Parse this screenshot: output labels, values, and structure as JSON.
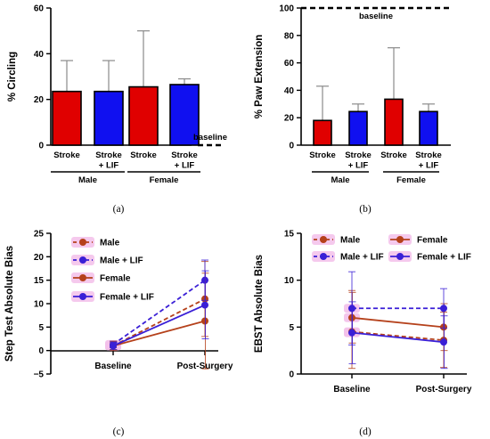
{
  "panels": {
    "a": "(a)",
    "b": "(b)",
    "c": "(c)",
    "d": "(d)"
  },
  "colors": {
    "stroke": "#e00000",
    "stroke_lif": "#1010f0",
    "male": "#b5411b",
    "male_lif": "#3a1fd6",
    "female": "#b5411b",
    "female_lif": "#3a1fd6",
    "band": "#f3c0ea"
  },
  "chart_data": [
    {
      "type": "bar",
      "ylabel": "% Circling",
      "ylim": [
        0,
        60
      ],
      "yticks": [
        "0",
        "20",
        "40",
        "60"
      ],
      "categories": [
        [
          "Stroke"
        ],
        [
          "Stroke",
          "+ LIF"
        ],
        [
          "Stroke"
        ],
        [
          "Stroke",
          "+ LIF"
        ]
      ],
      "groups": [
        "Male",
        "Female"
      ],
      "values": [
        23.5,
        23.5,
        25.5,
        26.5
      ],
      "errors": [
        37,
        37,
        50,
        29
      ],
      "bar_colors": [
        "#e00000",
        "#1010f0",
        "#e00000",
        "#1010f0"
      ],
      "baseline": {
        "label": "baseline",
        "value": 0
      }
    },
    {
      "type": "bar",
      "ylabel": "% Paw Extension",
      "ylim": [
        0,
        100
      ],
      "yticks": [
        "0",
        "20",
        "40",
        "60",
        "80",
        "100"
      ],
      "categories": [
        [
          "Stroke"
        ],
        [
          "Stroke",
          "+ LIF"
        ],
        [
          "Stroke"
        ],
        [
          "Stroke",
          "+ LIF"
        ]
      ],
      "groups": [
        "Male",
        "Female"
      ],
      "values": [
        18,
        24.5,
        33.5,
        24.5
      ],
      "errors": [
        43,
        30,
        71,
        30
      ],
      "bar_colors": [
        "#e00000",
        "#1010f0",
        "#e00000",
        "#1010f0"
      ],
      "baseline": {
        "label": "baseline",
        "value": 100
      }
    },
    {
      "type": "line",
      "ylabel": "Step Test Absolute Bias",
      "ylim": [
        -5,
        25
      ],
      "yticks": [
        "−5",
        "0",
        "5",
        "10",
        "15",
        "20",
        "25"
      ],
      "x": [
        "Baseline",
        "Post-Surgery"
      ],
      "series": [
        {
          "name": "Male",
          "values": [
            1,
            11
          ],
          "error_max": [
            1.8,
            19
          ],
          "error_min": [
            0.2,
            3
          ],
          "dashed": true,
          "color": "#b5411b"
        },
        {
          "name": "Male + LIF",
          "values": [
            1.3,
            15
          ],
          "error_max": [
            2,
            19.3
          ],
          "error_min": [
            0.6,
            10.7
          ],
          "dashed": true,
          "color": "#3a1fd6"
        },
        {
          "name": "Female",
          "values": [
            1,
            6.3
          ],
          "error_max": [
            2,
            16.5
          ],
          "error_min": [
            0,
            -3.9
          ],
          "dashed": false,
          "color": "#b5411b"
        },
        {
          "name": "Female + LIF",
          "values": [
            1,
            9.7
          ],
          "error_max": [
            1.8,
            17
          ],
          "error_min": [
            0.2,
            2.5
          ],
          "dashed": false,
          "color": "#3a1fd6"
        }
      ]
    },
    {
      "type": "line",
      "ylabel": "EBST Absolute Bias",
      "ylim": [
        0,
        15
      ],
      "yticks": [
        "0",
        "5",
        "10",
        "15"
      ],
      "x": [
        "Baseline",
        "Post-Surgery"
      ],
      "series": [
        {
          "name": "Male",
          "values": [
            4.5,
            3.6
          ],
          "error_max": [
            8.9,
            6.6
          ],
          "error_min": [
            0.6,
            0.7
          ],
          "dashed": true,
          "color": "#b5411b"
        },
        {
          "name": "Female",
          "values": [
            6,
            5
          ],
          "error_max": [
            8.7,
            7.5
          ],
          "error_min": [
            3.3,
            2.5
          ],
          "dashed": false,
          "color": "#b5411b"
        },
        {
          "name": "Male + LIF",
          "values": [
            7,
            7
          ],
          "error_max": [
            10.9,
            9.1
          ],
          "error_min": [
            3.1,
            4.9
          ],
          "dashed": true,
          "color": "#3a1fd6"
        },
        {
          "name": "Female + LIF",
          "values": [
            4.4,
            3.4
          ],
          "error_max": [
            7.7,
            6.2
          ],
          "error_min": [
            1.1,
            0.6
          ],
          "dashed": false,
          "color": "#3a1fd6"
        }
      ]
    }
  ]
}
